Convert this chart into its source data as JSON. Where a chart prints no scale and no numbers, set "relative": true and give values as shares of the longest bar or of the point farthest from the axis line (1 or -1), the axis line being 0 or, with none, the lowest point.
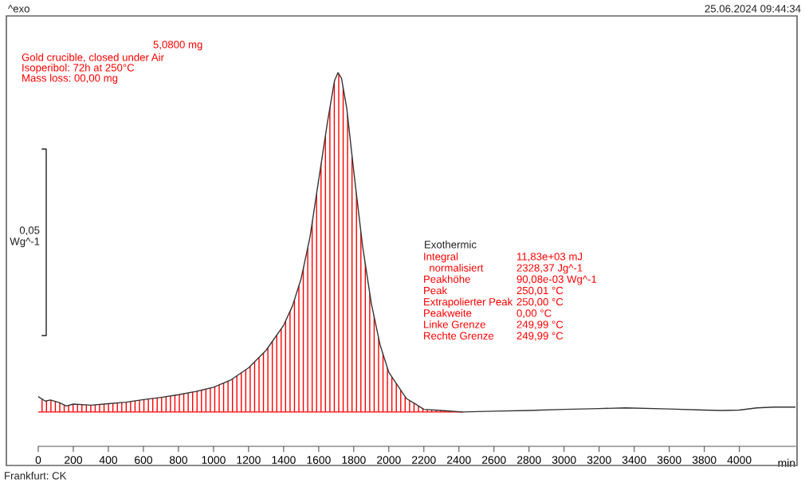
{
  "chart_data": {
    "type": "line",
    "relative": true,
    "xlabel": "min",
    "xlim": [
      0,
      4320
    ],
    "xticks": [
      0,
      200,
      400,
      600,
      800,
      1000,
      1200,
      1400,
      1600,
      1800,
      2000,
      2200,
      2400,
      2600,
      2800,
      3000,
      3200,
      3400,
      3600,
      3800,
      4000
    ],
    "grid": false,
    "legend": false,
    "series": [
      {
        "type": "area",
        "color": "#ff0000",
        "x": [
          0,
          40,
          70,
          120,
          160,
          200,
          300,
          400,
          500,
          600,
          700,
          800,
          900,
          1000,
          1100,
          1200,
          1300,
          1400,
          1450,
          1500,
          1550,
          1600,
          1650,
          1690,
          1710,
          1730,
          1760,
          1800,
          1850,
          1900,
          1950,
          2000,
          2100,
          2150,
          2200,
          2300,
          2420
        ],
        "values": [
          0.133,
          0.121,
          0.124,
          0.117,
          0.108,
          0.113,
          0.11,
          0.114,
          0.118,
          0.125,
          0.131,
          0.138,
          0.147,
          0.158,
          0.178,
          0.21,
          0.257,
          0.324,
          0.375,
          0.449,
          0.559,
          0.713,
          0.867,
          0.978,
          1.0,
          0.985,
          0.905,
          0.736,
          0.537,
          0.383,
          0.272,
          0.198,
          0.128,
          0.114,
          0.099,
          0.096,
          0.092
        ]
      },
      {
        "type": "line",
        "color": "#ff0000",
        "x": [
          0,
          2420
        ],
        "values": [
          0.092,
          0.092
        ]
      },
      {
        "color": "#333333",
        "x": [
          0,
          40,
          70,
          120,
          160,
          200,
          300,
          400,
          500,
          600,
          700,
          800,
          900,
          1000,
          1100,
          1200,
          1300,
          1400,
          1450,
          1500,
          1550,
          1600,
          1650,
          1690,
          1710,
          1730,
          1760,
          1800,
          1850,
          1900,
          1950,
          2000,
          2100,
          2150,
          2200,
          2300,
          2420,
          2600,
          2800,
          3000,
          3200,
          3350,
          3600,
          3800,
          3900,
          4000,
          4100,
          4200,
          4320
        ],
        "values": [
          0.133,
          0.121,
          0.124,
          0.117,
          0.108,
          0.113,
          0.11,
          0.114,
          0.118,
          0.125,
          0.131,
          0.138,
          0.147,
          0.158,
          0.178,
          0.21,
          0.257,
          0.324,
          0.375,
          0.449,
          0.559,
          0.713,
          0.867,
          0.978,
          1.0,
          0.985,
          0.905,
          0.736,
          0.537,
          0.383,
          0.272,
          0.198,
          0.128,
          0.114,
          0.099,
          0.096,
          0.092,
          0.094,
          0.096,
          0.099,
          0.101,
          0.103,
          0.1,
          0.097,
          0.096,
          0.097,
          0.103,
          0.105,
          0.105
        ]
      }
    ],
    "annotations": [
      "^exo",
      "25.06.2024 09:44:34",
      "5,0800 mg",
      "Gold crucible, closed under Air",
      "Isoperibol: 72h at 250°C",
      "Mass loss: 00,00 mg",
      "0,05",
      "Wg^-1",
      "Exothermic",
      "Integral",
      "  normalisiert",
      "Peakhöhe",
      "Peak",
      "Extrapolierter Peak",
      "Peakweite",
      "Linke Grenze",
      "Rechte Grenze",
      "11,83e+03 mJ",
      "2328,37 Jg^-1",
      "90,08e-03 Wg^-1",
      "250,01 °C",
      "250,00 °C",
      "0,00 °C",
      "249,99 °C",
      "249,99 °C",
      "Frankfurt: CK"
    ]
  }
}
